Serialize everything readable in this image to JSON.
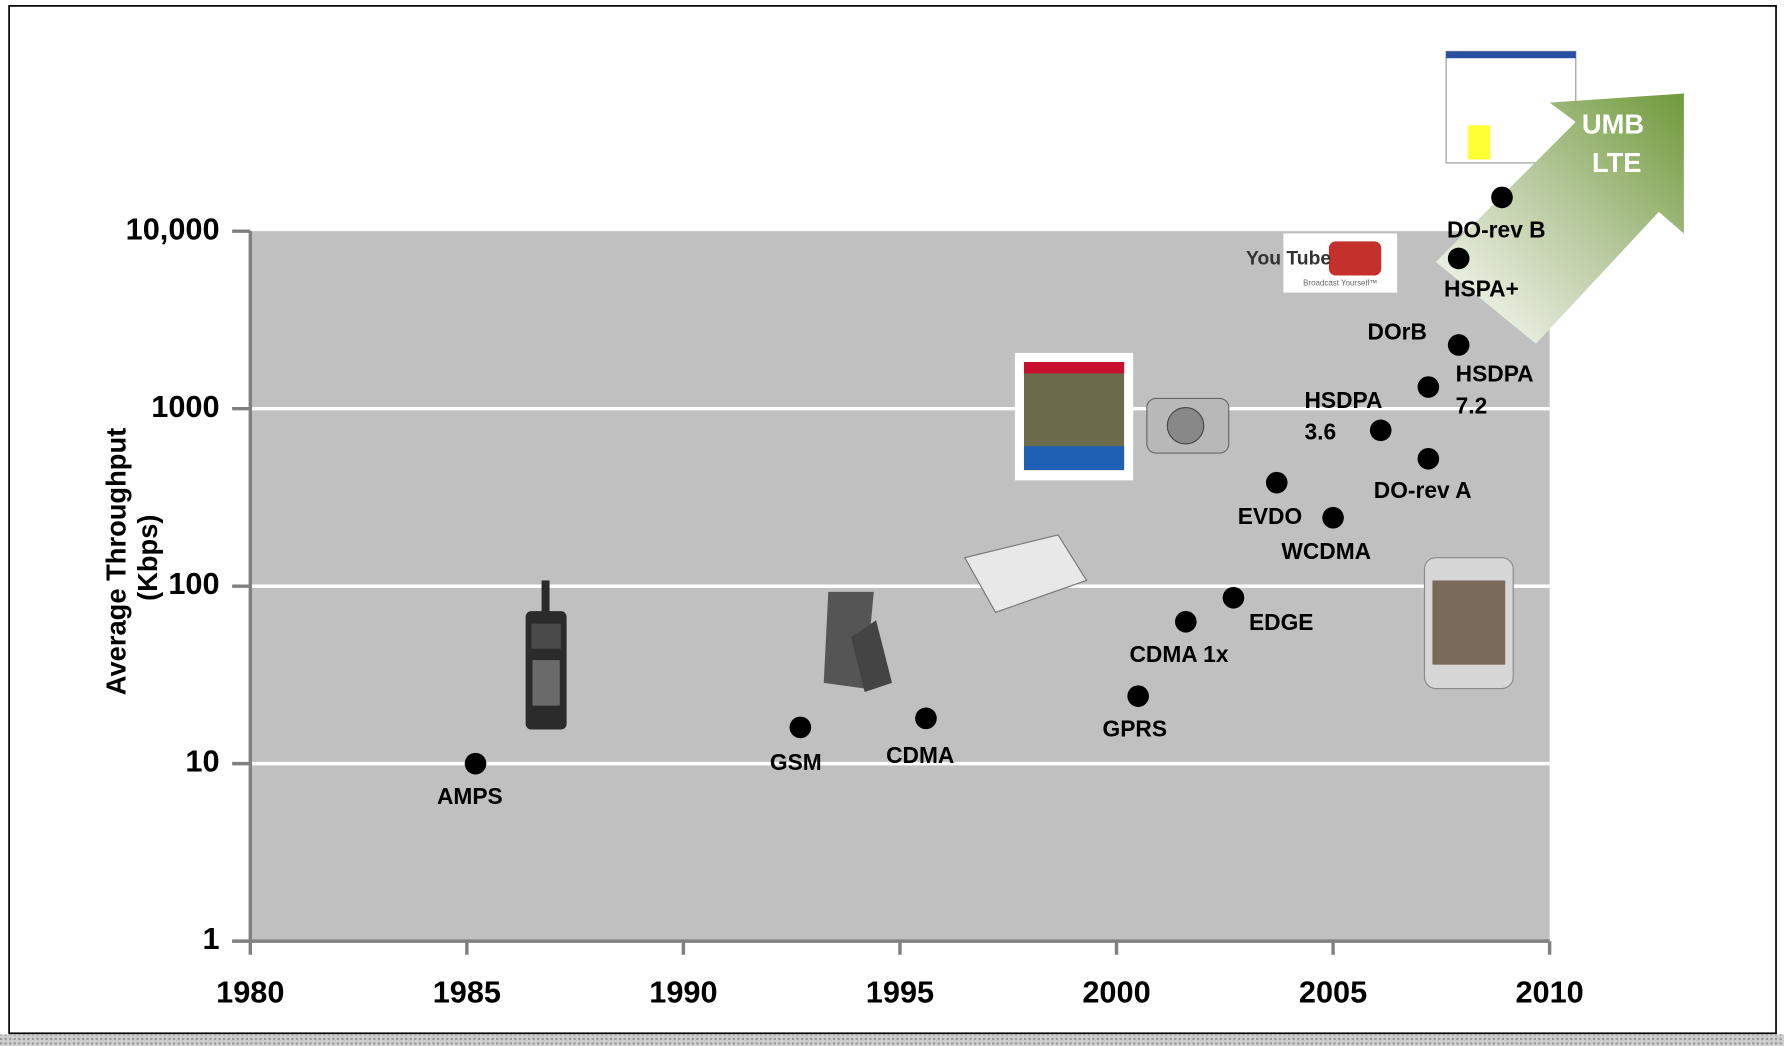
{
  "chart_data": {
    "type": "scatter",
    "y_label": "Average Throughput (Kbps)",
    "log_y": true,
    "grid": true,
    "color": "#000000",
    "x": [
      1985.2,
      1992.7,
      1995.6,
      2000.5,
      2001.6,
      2002.7,
      2003.7,
      2005.0,
      2006.1,
      2007.2,
      2007.2,
      2007.9,
      2007.9,
      2008.9
    ],
    "values": [
      10,
      16,
      18,
      24,
      63,
      86,
      383,
      243,
      755,
      522,
      1324,
      2285,
      7020,
      15500
    ],
    "point_labels": [
      "AMPS",
      "GSM",
      "CDMA",
      "GPRS",
      "CDMA 1x",
      "EDGE",
      "EVDO",
      "WCDMA",
      "HSDPA 3.6",
      "DO-rev A",
      "HSDPA 7.2",
      "DOrB",
      "HSPA+",
      "DO-rev B"
    ],
    "xlim": [
      1980,
      2010
    ],
    "xticks": [
      1980,
      1985,
      1990,
      1995,
      2000,
      2005,
      2010
    ],
    "ylim": [
      1,
      10000
    ],
    "yticks": [
      1,
      10,
      100,
      1000,
      {
        "value": 10000,
        "label": "10,000"
      }
    ],
    "arrow_label": "UMB LTE",
    "logo_text": "You Tube",
    "logo_tagline": "Broadcast Yourself™"
  }
}
